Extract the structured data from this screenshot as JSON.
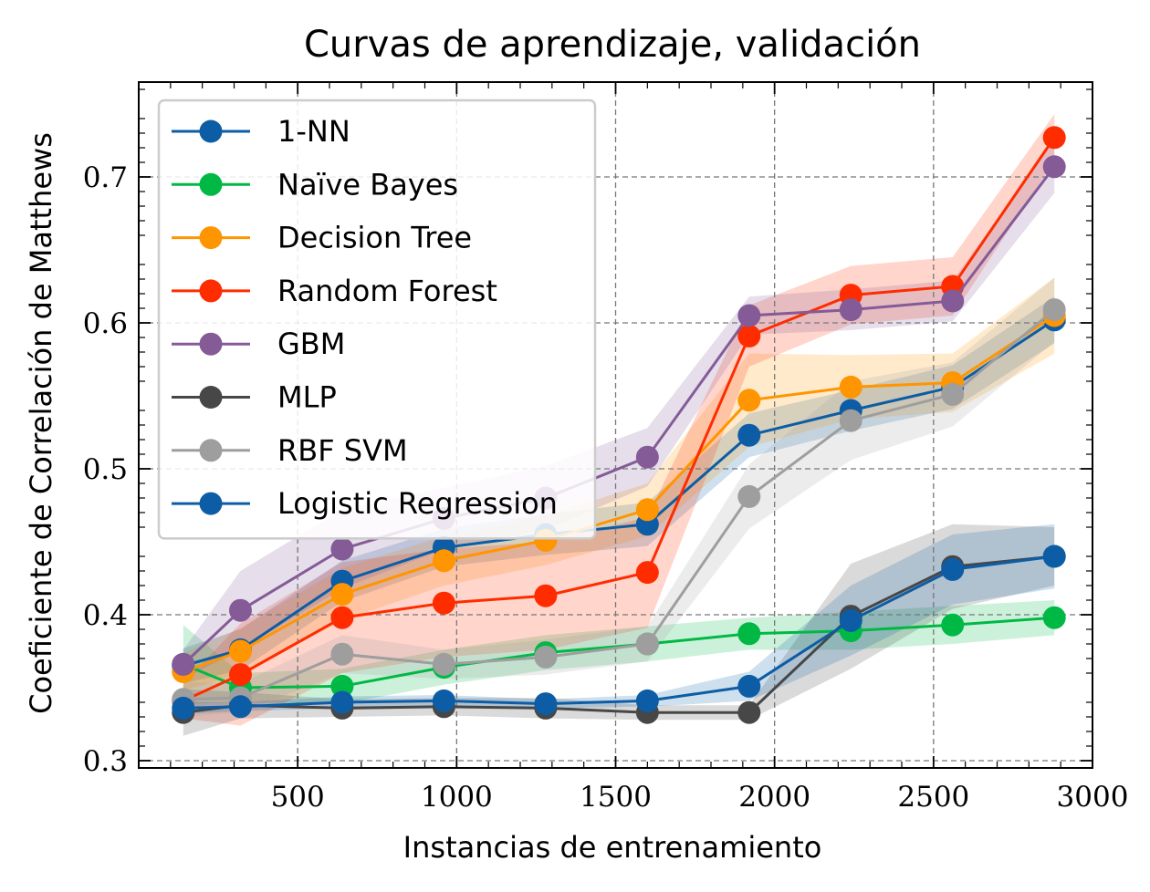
{
  "chart_data": {
    "type": "line",
    "title": "Curvas de aprendizaje, validación",
    "xlabel": "Instancias de entrenamiento",
    "ylabel": "Coeficiente de Correlación de Matthews",
    "xlim": [
      0,
      3000
    ],
    "ylim": [
      0.295,
      0.765
    ],
    "xticks": [
      500,
      1000,
      1500,
      2000,
      2500,
      3000
    ],
    "xtick_labels": [
      "500",
      "1000",
      "1500",
      "2000",
      "2500",
      "3000"
    ],
    "yticks": [
      0.3,
      0.4,
      0.5,
      0.6,
      0.7
    ],
    "ytick_labels": [
      "0.3",
      "0.4",
      "0.5",
      "0.6",
      "0.7"
    ],
    "grid": true,
    "legend_position": "top-left",
    "x": [
      140,
      320,
      640,
      960,
      1280,
      1600,
      1920,
      2240,
      2560,
      2880
    ],
    "series": [
      {
        "name": "1-NN",
        "color": "#0C5DA5",
        "values": [
          0.365,
          0.376,
          0.423,
          0.446,
          0.455,
          0.462,
          0.523,
          0.54,
          0.556,
          0.602
        ],
        "band": [
          0.012,
          0.014,
          0.014,
          0.013,
          0.014,
          0.015,
          0.015,
          0.014,
          0.015,
          0.016
        ]
      },
      {
        "name": "Naïve Bayes",
        "color": "#00B945",
        "values": [
          0.366,
          0.35,
          0.351,
          0.364,
          0.374,
          0.38,
          0.387,
          0.389,
          0.393,
          0.398
        ],
        "band": [
          0.027,
          0.01,
          0.012,
          0.012,
          0.012,
          0.012,
          0.011,
          0.013,
          0.013,
          0.012
        ]
      },
      {
        "name": "Decision Tree",
        "color": "#FF9500",
        "values": [
          0.361,
          0.375,
          0.414,
          0.437,
          0.451,
          0.472,
          0.547,
          0.556,
          0.559,
          0.605
        ],
        "band": [
          0.013,
          0.016,
          0.018,
          0.017,
          0.017,
          0.018,
          0.032,
          0.022,
          0.02,
          0.026
        ]
      },
      {
        "name": "Random Forest",
        "color": "#FF2C00",
        "values": [
          0.341,
          0.359,
          0.398,
          0.408,
          0.413,
          0.429,
          0.591,
          0.619,
          0.625,
          0.727
        ],
        "band": [
          0.012,
          0.035,
          0.038,
          0.037,
          0.037,
          0.038,
          0.021,
          0.02,
          0.02,
          0.016
        ]
      },
      {
        "name": "GBM",
        "color": "#845B97",
        "values": [
          0.366,
          0.403,
          0.445,
          0.466,
          0.48,
          0.508,
          0.605,
          0.609,
          0.615,
          0.707
        ],
        "band": [
          0.01,
          0.027,
          0.027,
          0.021,
          0.022,
          0.02,
          0.013,
          0.014,
          0.014,
          0.018
        ]
      },
      {
        "name": "MLP",
        "color": "#474747",
        "values": [
          0.333,
          0.338,
          0.336,
          0.337,
          0.336,
          0.333,
          0.333,
          0.399,
          0.433,
          0.44
        ],
        "band": [
          0.016,
          0.009,
          0.006,
          0.006,
          0.007,
          0.005,
          0.005,
          0.036,
          0.029,
          0.02
        ]
      },
      {
        "name": "RBF SVM",
        "color": "#9E9E9E",
        "values": [
          0.342,
          0.343,
          0.373,
          0.366,
          0.371,
          0.38,
          0.481,
          0.533,
          0.551,
          0.609
        ],
        "band": [
          0.012,
          0.01,
          0.013,
          0.01,
          0.012,
          0.012,
          0.022,
          0.027,
          0.022,
          0.022
        ]
      },
      {
        "name": "Logistic Regression",
        "color": "#0C5DA5",
        "values": [
          0.336,
          0.337,
          0.34,
          0.341,
          0.339,
          0.341,
          0.351,
          0.396,
          0.431,
          0.44
        ],
        "band": [
          0.004,
          0.003,
          0.004,
          0.004,
          0.003,
          0.004,
          0.01,
          0.024,
          0.024,
          0.022
        ]
      }
    ]
  }
}
